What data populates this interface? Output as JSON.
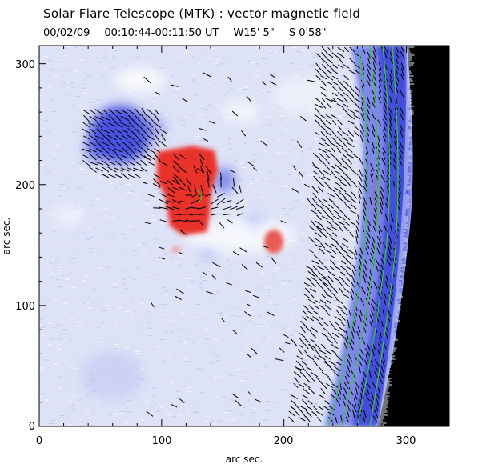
{
  "header": {
    "title": "Solar Flare Telescope (MTK) : vector magnetic field",
    "date": "00/02/09",
    "time_range": "00:10:44-00:11:50 UT",
    "position_w": "W15' 5\"",
    "position_s": "S 0'58\""
  },
  "axes": {
    "xlabel": "arc sec.",
    "ylabel": "arc sec.",
    "xticks": [
      "0",
      "100",
      "200",
      "300"
    ],
    "yticks": [
      "0",
      "100",
      "200",
      "300"
    ],
    "xlim": [
      0,
      335
    ],
    "ylim": [
      0,
      315
    ]
  },
  "colors": {
    "background": "#dde2f6",
    "negative": "#2e3ae0",
    "positive": "#e8302a",
    "limb": "#000000",
    "contour": "#3cc83c",
    "vector": "#000000"
  }
}
